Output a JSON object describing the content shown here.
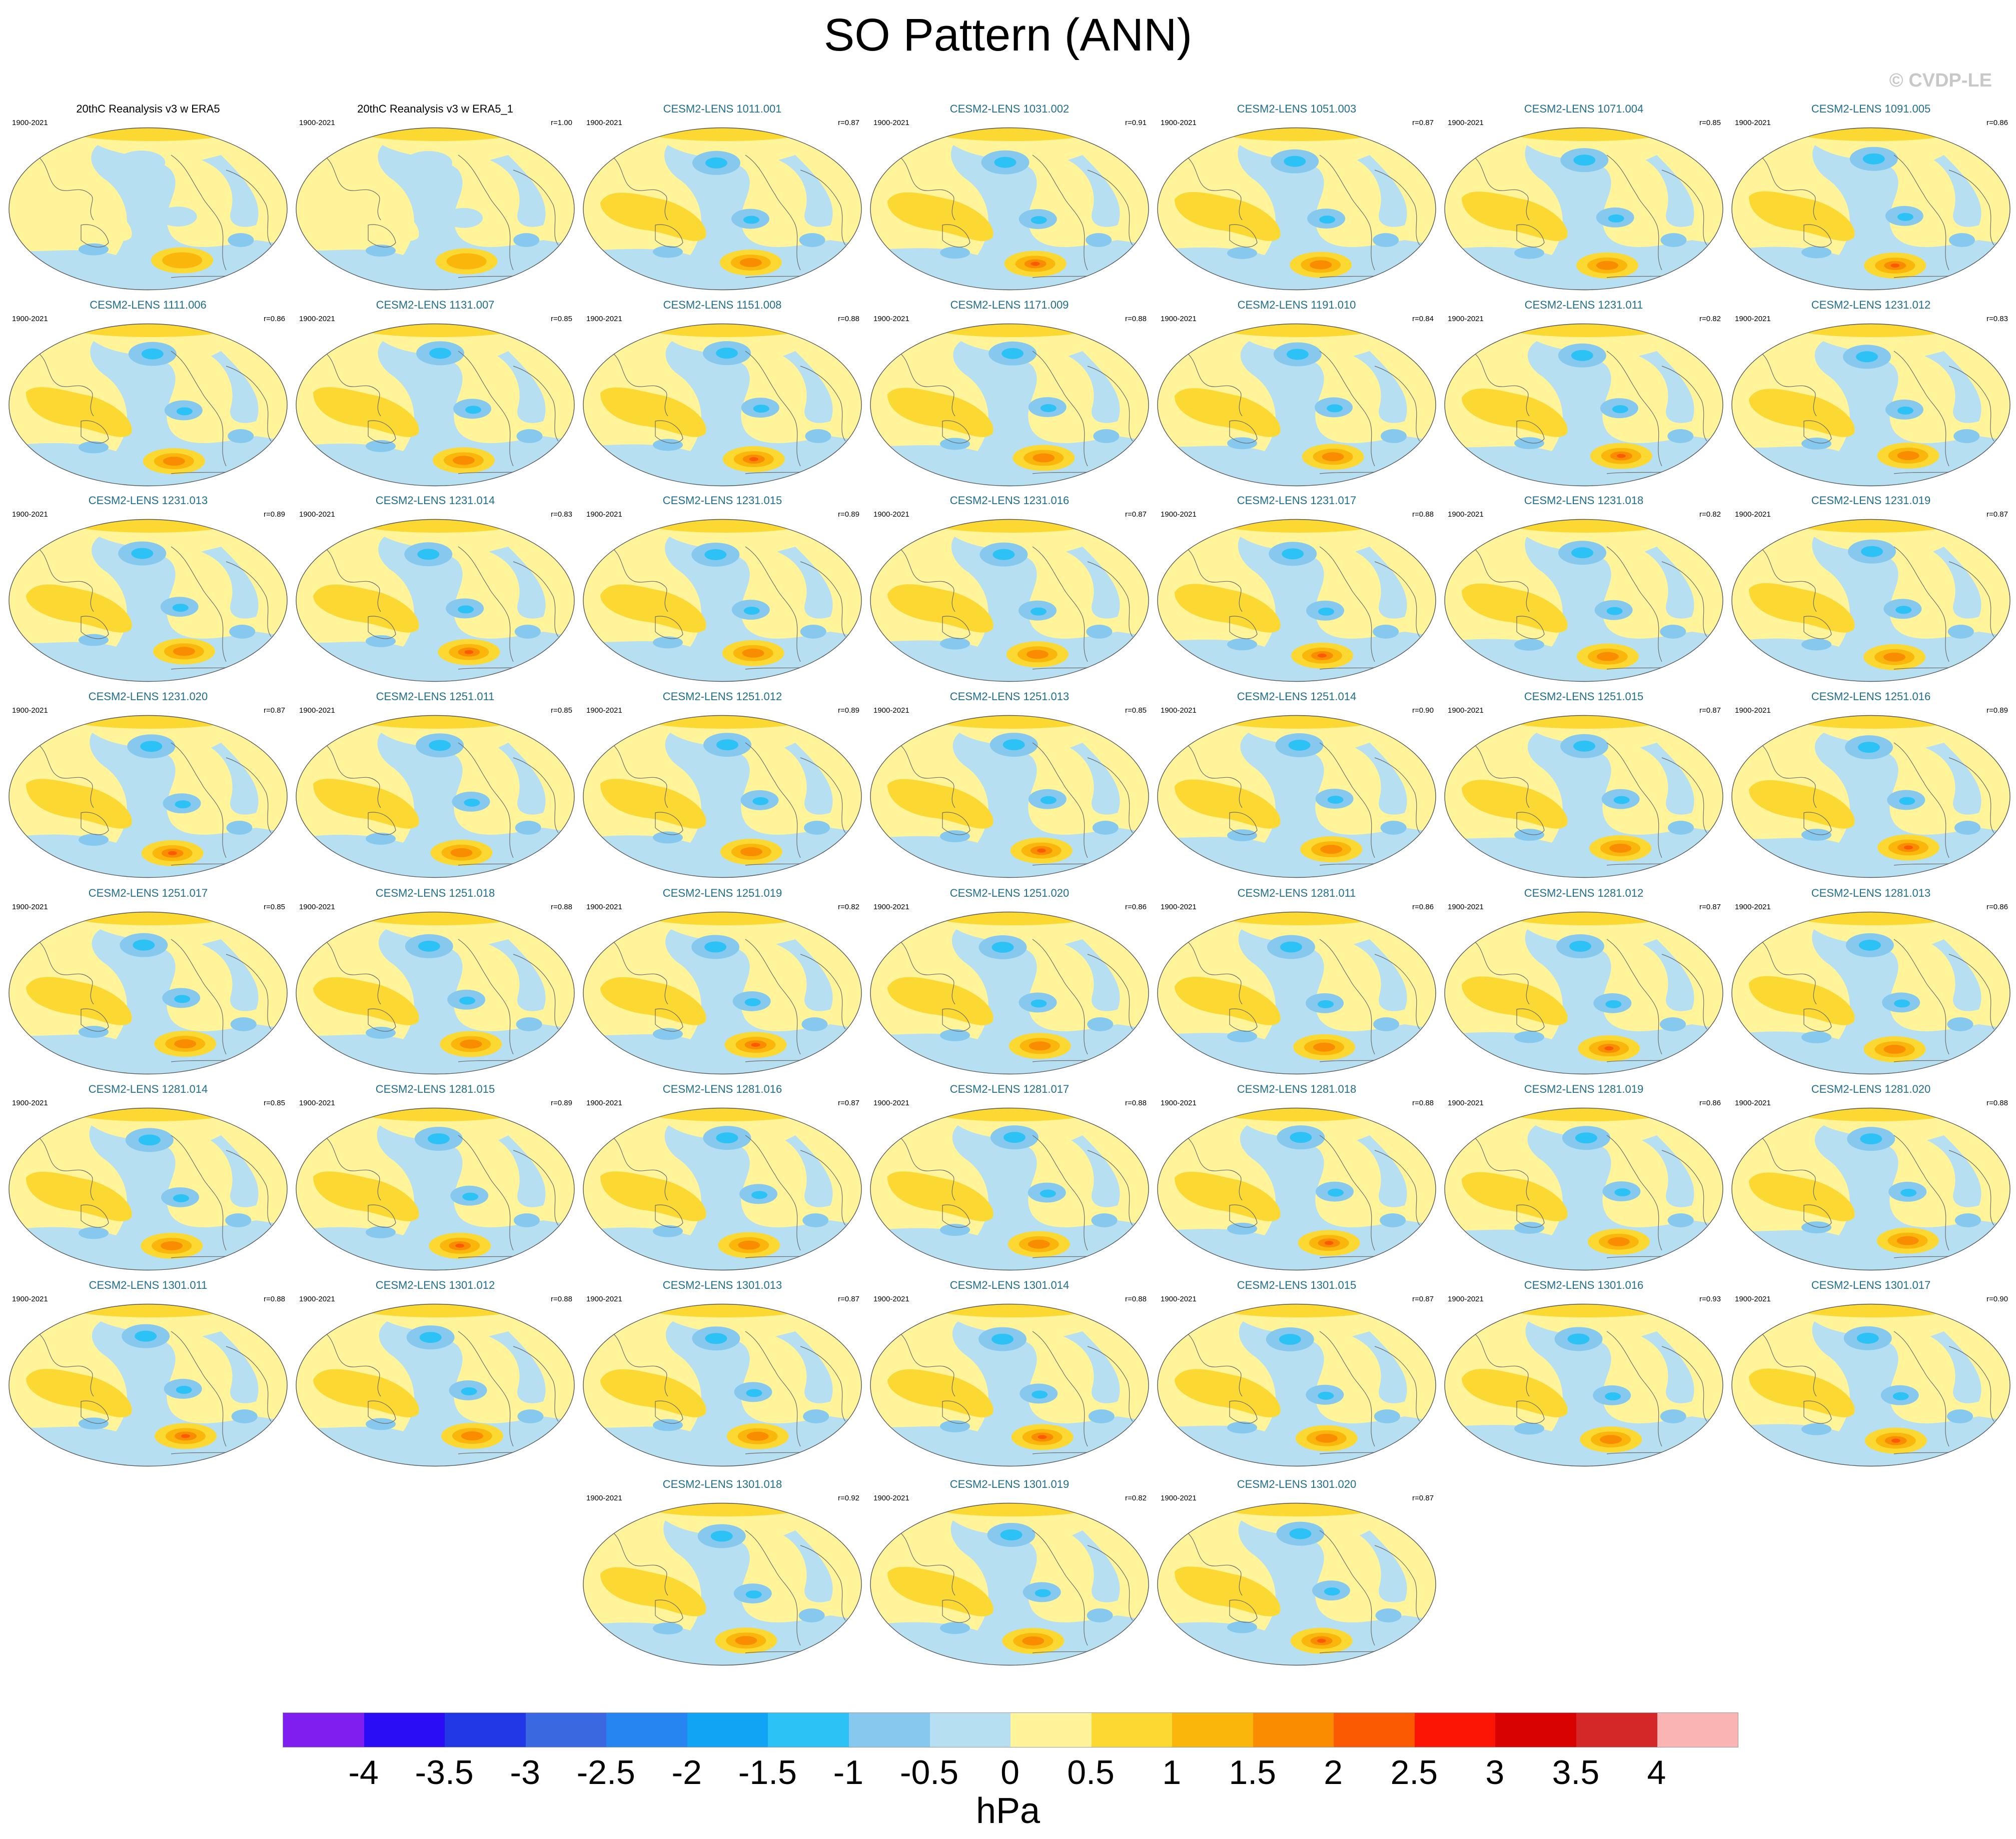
{
  "title": "SO Pattern (ANN)",
  "watermark": "© CVDP-LE",
  "units": "hPa",
  "colors": {
    "land_outline": "#6b6b6b",
    "model_title": "#1f6e8c",
    "obs_title": "#000000"
  },
  "chart_data": {
    "type": "heatmap",
    "description_of_variable": "sea level pressure regression pattern",
    "projection": "global ellipse (Pacific-centered)",
    "period": "1900-2021",
    "levels": [
      -4,
      -3.5,
      -3,
      -2.5,
      -2,
      -1.5,
      -1,
      -0.5,
      0,
      0.5,
      1,
      1.5,
      2,
      2.5,
      3,
      3.5,
      4
    ],
    "tick_labels": [
      "-4",
      "-3.5",
      "-3",
      "-2.5",
      "-2",
      "-1.5",
      "-1",
      "-0.5",
      "0",
      "0.5",
      "1",
      "1.5",
      "2",
      "2.5",
      "3",
      "3.5",
      "4"
    ],
    "colorbar_colors": [
      "#7f1fef",
      "#2a0cf5",
      "#2237e6",
      "#3a68e0",
      "#2785f2",
      "#11a4f5",
      "#2cc2f5",
      "#87c9ee",
      "#b7dff2",
      "#fff49a",
      "#fcd832",
      "#fab60a",
      "#fa8c02",
      "#fc5a02",
      "#fc1404",
      "#d90202",
      "#d42828",
      "#fab4b4"
    ],
    "panels": [
      {
        "title": "20thC Reanalysis v3 w ERA5",
        "years": "1900-2021",
        "corr": "",
        "obs": true
      },
      {
        "title": "20thC Reanalysis v3 w ERA5_1",
        "years": "1900-2021",
        "corr": "r=1.00",
        "obs": true
      },
      {
        "title": "CESM2-LENS 1011.001",
        "years": "1900-2021",
        "corr": "r=0.87"
      },
      {
        "title": "CESM2-LENS 1031.002",
        "years": "1900-2021",
        "corr": "r=0.91"
      },
      {
        "title": "CESM2-LENS 1051.003",
        "years": "1900-2021",
        "corr": "r=0.87"
      },
      {
        "title": "CESM2-LENS 1071.004",
        "years": "1900-2021",
        "corr": "r=0.85"
      },
      {
        "title": "CESM2-LENS 1091.005",
        "years": "1900-2021",
        "corr": "r=0.86"
      },
      {
        "title": "CESM2-LENS 1111.006",
        "years": "1900-2021",
        "corr": "r=0.86"
      },
      {
        "title": "CESM2-LENS 1131.007",
        "years": "1900-2021",
        "corr": "r=0.85"
      },
      {
        "title": "CESM2-LENS 1151.008",
        "years": "1900-2021",
        "corr": "r=0.88"
      },
      {
        "title": "CESM2-LENS 1171.009",
        "years": "1900-2021",
        "corr": "r=0.88"
      },
      {
        "title": "CESM2-LENS 1191.010",
        "years": "1900-2021",
        "corr": "r=0.84"
      },
      {
        "title": "CESM2-LENS 1231.011",
        "years": "1900-2021",
        "corr": "r=0.82"
      },
      {
        "title": "CESM2-LENS 1231.012",
        "years": "1900-2021",
        "corr": "r=0.83"
      },
      {
        "title": "CESM2-LENS 1231.013",
        "years": "1900-2021",
        "corr": "r=0.89"
      },
      {
        "title": "CESM2-LENS 1231.014",
        "years": "1900-2021",
        "corr": "r=0.83"
      },
      {
        "title": "CESM2-LENS 1231.015",
        "years": "1900-2021",
        "corr": "r=0.89"
      },
      {
        "title": "CESM2-LENS 1231.016",
        "years": "1900-2021",
        "corr": "r=0.87"
      },
      {
        "title": "CESM2-LENS 1231.017",
        "years": "1900-2021",
        "corr": "r=0.88"
      },
      {
        "title": "CESM2-LENS 1231.018",
        "years": "1900-2021",
        "corr": "r=0.82"
      },
      {
        "title": "CESM2-LENS 1231.019",
        "years": "1900-2021",
        "corr": "r=0.87"
      },
      {
        "title": "CESM2-LENS 1231.020",
        "years": "1900-2021",
        "corr": "r=0.87"
      },
      {
        "title": "CESM2-LENS 1251.011",
        "years": "1900-2021",
        "corr": "r=0.85"
      },
      {
        "title": "CESM2-LENS 1251.012",
        "years": "1900-2021",
        "corr": "r=0.89"
      },
      {
        "title": "CESM2-LENS 1251.013",
        "years": "1900-2021",
        "corr": "r=0.85"
      },
      {
        "title": "CESM2-LENS 1251.014",
        "years": "1900-2021",
        "corr": "r=0.90"
      },
      {
        "title": "CESM2-LENS 1251.015",
        "years": "1900-2021",
        "corr": "r=0.87"
      },
      {
        "title": "CESM2-LENS 1251.016",
        "years": "1900-2021",
        "corr": "r=0.89"
      },
      {
        "title": "CESM2-LENS 1251.017",
        "years": "1900-2021",
        "corr": "r=0.85"
      },
      {
        "title": "CESM2-LENS 1251.018",
        "years": "1900-2021",
        "corr": "r=0.88"
      },
      {
        "title": "CESM2-LENS 1251.019",
        "years": "1900-2021",
        "corr": "r=0.82"
      },
      {
        "title": "CESM2-LENS 1251.020",
        "years": "1900-2021",
        "corr": "r=0.86"
      },
      {
        "title": "CESM2-LENS 1281.011",
        "years": "1900-2021",
        "corr": "r=0.86"
      },
      {
        "title": "CESM2-LENS 1281.012",
        "years": "1900-2021",
        "corr": "r=0.87"
      },
      {
        "title": "CESM2-LENS 1281.013",
        "years": "1900-2021",
        "corr": "r=0.86"
      },
      {
        "title": "CESM2-LENS 1281.014",
        "years": "1900-2021",
        "corr": "r=0.85"
      },
      {
        "title": "CESM2-LENS 1281.015",
        "years": "1900-2021",
        "corr": "r=0.89"
      },
      {
        "title": "CESM2-LENS 1281.016",
        "years": "1900-2021",
        "corr": "r=0.87"
      },
      {
        "title": "CESM2-LENS 1281.017",
        "years": "1900-2021",
        "corr": "r=0.88"
      },
      {
        "title": "CESM2-LENS 1281.018",
        "years": "1900-2021",
        "corr": "r=0.88"
      },
      {
        "title": "CESM2-LENS 1281.019",
        "years": "1900-2021",
        "corr": "r=0.86"
      },
      {
        "title": "CESM2-LENS 1281.020",
        "years": "1900-2021",
        "corr": "r=0.88"
      },
      {
        "title": "CESM2-LENS 1301.011",
        "years": "1900-2021",
        "corr": "r=0.88"
      },
      {
        "title": "CESM2-LENS 1301.012",
        "years": "1900-2021",
        "corr": "r=0.88"
      },
      {
        "title": "CESM2-LENS 1301.013",
        "years": "1900-2021",
        "corr": "r=0.87"
      },
      {
        "title": "CESM2-LENS 1301.014",
        "years": "1900-2021",
        "corr": "r=0.88"
      },
      {
        "title": "CESM2-LENS 1301.015",
        "years": "1900-2021",
        "corr": "r=0.87"
      },
      {
        "title": "CESM2-LENS 1301.016",
        "years": "1900-2021",
        "corr": "r=0.93"
      },
      {
        "title": "CESM2-LENS 1301.017",
        "years": "1900-2021",
        "corr": "r=0.90"
      },
      {
        "title": "CESM2-LENS 1301.018",
        "years": "1900-2021",
        "corr": "r=0.92"
      },
      {
        "title": "CESM2-LENS 1301.019",
        "years": "1900-2021",
        "corr": "r=0.82"
      },
      {
        "title": "CESM2-LENS 1301.020",
        "years": "1900-2021",
        "corr": "r=0.87"
      }
    ]
  }
}
